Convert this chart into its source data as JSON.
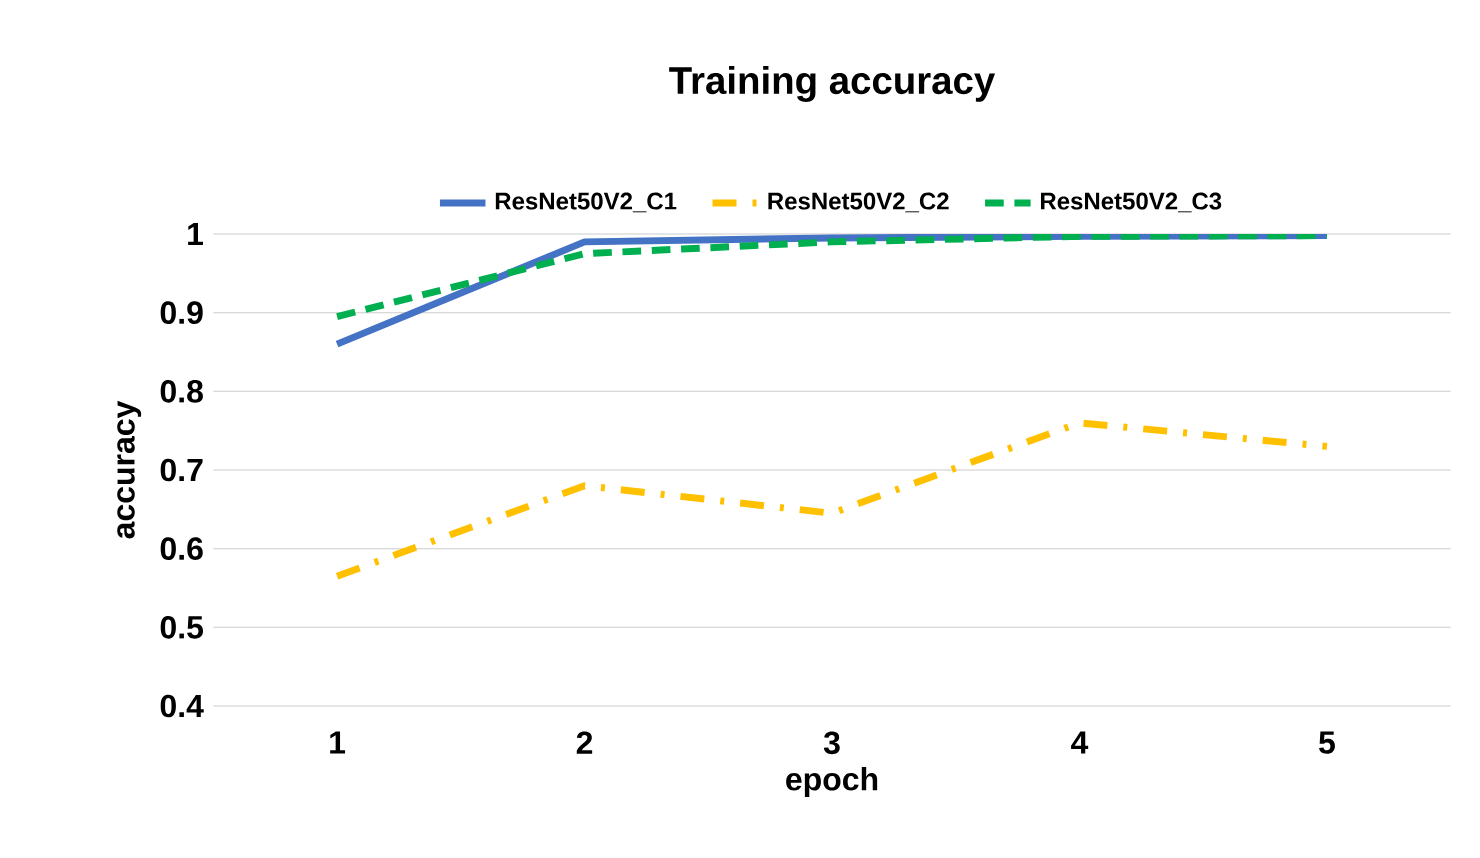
{
  "chart_data": {
    "type": "line",
    "title": "Training accuracy",
    "xlabel": "epoch",
    "ylabel": "accuracy",
    "categories": [
      "1",
      "2",
      "3",
      "4",
      "5"
    ],
    "series": [
      {
        "name": "ResNet50V2_C1",
        "color": "#4472c4",
        "line_style": "solid",
        "values": [
          0.86,
          0.99,
          0.995,
          0.997,
          0.998
        ]
      },
      {
        "name": "ResNet50V2_C2",
        "color": "#ffc000",
        "line_style": "dashdot",
        "values": [
          0.565,
          0.68,
          0.645,
          0.76,
          0.73
        ]
      },
      {
        "name": "ResNet50V2_C3",
        "color": "#00b050",
        "line_style": "dashed",
        "values": [
          0.895,
          0.975,
          0.99,
          0.997,
          0.998
        ]
      }
    ],
    "ylim": [
      0.4,
      1
    ],
    "yticks": [
      0.4,
      0.5,
      0.6,
      0.7,
      0.8,
      0.9,
      1
    ],
    "grid": "y",
    "legend": "top",
    "marker": "none"
  }
}
